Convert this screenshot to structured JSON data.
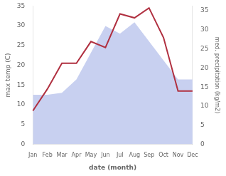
{
  "chart_data": {
    "type": "line",
    "categories": [
      "Jan",
      "Feb",
      "Mar",
      "Apr",
      "May",
      "Jun",
      "Jul",
      "Aug",
      "Sep",
      "Oct",
      "Nov",
      "Dec"
    ],
    "xlabel": "date (month)",
    "ylabel": "max temp (C)",
    "y2label": "med. precipitation (kg/m2)",
    "ylim": [
      0,
      35
    ],
    "yticks": [
      0,
      5,
      10,
      15,
      20,
      25,
      30,
      35
    ],
    "y2lim": [
      0,
      36.25
    ],
    "y2ticks": [
      0,
      5,
      10,
      15,
      20,
      25,
      30,
      35
    ],
    "grid": false,
    "series": [
      {
        "type": "area",
        "axis": "y2",
        "color": "#c8d0f0",
        "values": [
          13.0,
          13.0,
          13.5,
          17.0,
          24.0,
          31.0,
          29.0,
          32.0,
          27.0,
          22.0,
          17.0,
          17.0
        ]
      },
      {
        "type": "line",
        "color": "#b03040",
        "values": [
          8.5,
          14.0,
          20.5,
          20.5,
          26.0,
          24.5,
          33.0,
          32.0,
          34.5,
          27.0,
          13.5,
          13.5
        ]
      }
    ]
  }
}
